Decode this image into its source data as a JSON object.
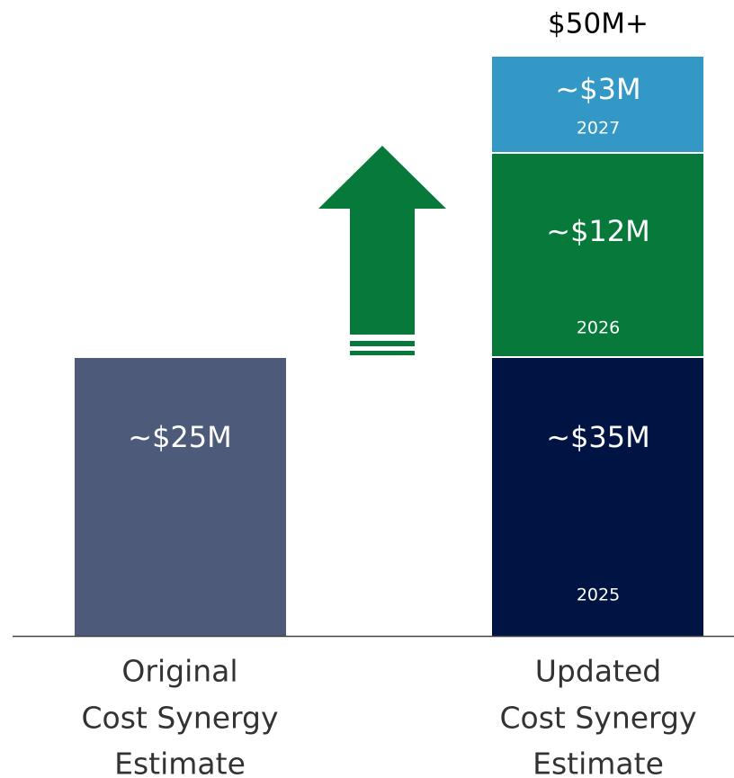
{
  "title": "$50M+",
  "original": {
    "label": "~$25M",
    "caption": [
      "Original",
      "Cost Synergy",
      "Estimate"
    ]
  },
  "updated": {
    "segments": [
      {
        "label": "~$35M",
        "year": "2025"
      },
      {
        "label": "~$12M",
        "year": "2026"
      },
      {
        "label": "~$3M",
        "year": "2027"
      }
    ],
    "caption": [
      "Updated",
      "Cost Synergy",
      "Estimate"
    ]
  }
}
